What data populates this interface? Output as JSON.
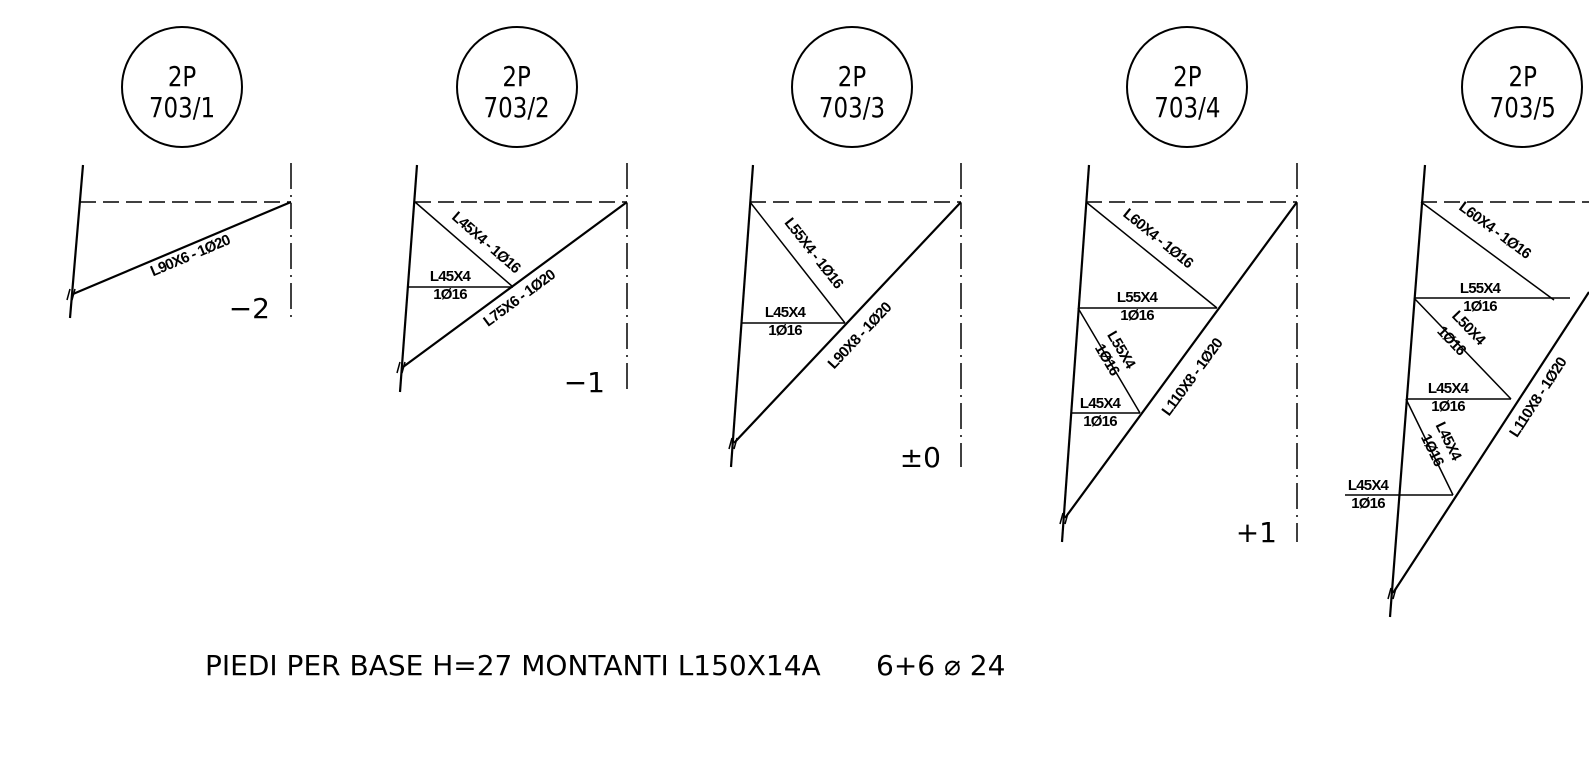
{
  "drawing": {
    "caption": "PIEDI PER BASE H=27 MONTANTI L150X14A",
    "caption_right": "6+6 ⌀ 24"
  },
  "panels": [
    {
      "tag_line1": "2P",
      "tag_line2": "703/1",
      "level": "−2",
      "members": [
        "L90X6 - 1Ø20"
      ]
    },
    {
      "tag_line1": "2P",
      "tag_line2": "703/2",
      "level": "−1",
      "members": [
        "L45X4 - 1Ø16",
        "L45X4",
        "1Ø16",
        "L75X6 - 1Ø20"
      ]
    },
    {
      "tag_line1": "2P",
      "tag_line2": "703/3",
      "level": "±0",
      "members": [
        "L55X4 - 1Ø16",
        "L45X4",
        "1Ø16",
        "L90X8 - 1Ø20"
      ]
    },
    {
      "tag_line1": "2P",
      "tag_line2": "703/4",
      "level": "+1",
      "members": [
        "L60X4 - 1Ø16",
        "L55X4",
        "1Ø16",
        "L55X4",
        "1Ø16",
        "L45X4",
        "1Ø16",
        "L110X8 - 1Ø20"
      ]
    },
    {
      "tag_line1": "2P",
      "tag_line2": "703/5",
      "level": "",
      "members": [
        "L60X4 - 1Ø16",
        "L55X4",
        "1Ø16",
        "L50X4",
        "1Ø16",
        "L45X4",
        "1Ø16",
        "L45X4",
        "1Ø16",
        "L45X4",
        "1Ø16",
        "L110X8 - 1Ø20"
      ]
    }
  ]
}
